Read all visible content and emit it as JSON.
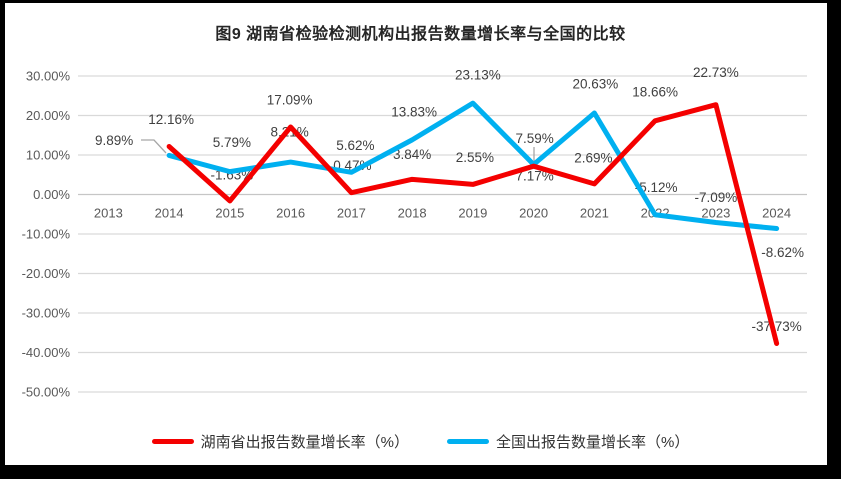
{
  "title": "图9 湖南省检验检测机构出报告数量增长率与全国的比较",
  "chart_data": {
    "type": "line",
    "categories": [
      "2013",
      "2014",
      "2015",
      "2016",
      "2017",
      "2018",
      "2019",
      "2020",
      "2021",
      "2022",
      "2023",
      "2024"
    ],
    "series": [
      {
        "name": "湖南省出报告数量增长率（%）",
        "color": "#f40000",
        "values": [
          null,
          12.16,
          -1.63,
          17.09,
          0.47,
          3.84,
          2.55,
          7.17,
          2.69,
          18.66,
          22.73,
          -37.73
        ],
        "labels": [
          "",
          "12.16%",
          "-1.63%",
          "17.09%",
          "0.47%",
          "3.84%",
          "2.55%",
          "7.17%",
          "2.69%",
          "18.66%",
          "22.73%",
          "-37.73%"
        ],
        "label_offsets": [
          null,
          [
            2,
            -27
          ],
          [
            2,
            -26
          ],
          [
            -1,
            -27
          ],
          [
            1,
            -27
          ],
          [
            0,
            -25
          ],
          [
            2,
            -27
          ],
          [
            1,
            10
          ],
          [
            -1,
            -26
          ],
          [
            0,
            -29
          ],
          [
            0,
            -32
          ],
          [
            0,
            -17
          ]
        ]
      },
      {
        "name": "全国出报告数量增长率（%）",
        "color": "#00b0f0",
        "values": [
          null,
          9.89,
          5.79,
          8.21,
          5.62,
          13.83,
          23.13,
          7.59,
          20.63,
          -5.12,
          -7.09,
          -8.62
        ],
        "labels": [
          "",
          "9.89%",
          "5.79%",
          "8.21%",
          "5.62%",
          "13.83%",
          "23.13%",
          "7.59%",
          "20.63%",
          "-5.12%",
          "-7.09%",
          "-8.62%"
        ],
        "label_offsets": [
          null,
          [
            -55,
            -15
          ],
          [
            2,
            -29
          ],
          [
            -1,
            -30
          ],
          [
            4,
            -27
          ],
          [
            2,
            -28
          ],
          [
            5,
            -28
          ],
          [
            1,
            -26
          ],
          [
            1,
            -29
          ],
          [
            1,
            -27
          ],
          [
            0,
            -25
          ],
          [
            6,
            24
          ]
        ]
      }
    ],
    "y_ticks": [
      {
        "value": 30,
        "label": "30.00%"
      },
      {
        "value": 20,
        "label": "20.00%"
      },
      {
        "value": 10,
        "label": "10.00%"
      },
      {
        "value": 0,
        "label": "0.00%"
      },
      {
        "value": -10,
        "label": "-10.00%"
      },
      {
        "value": -20,
        "label": "-20.00%"
      },
      {
        "value": -30,
        "label": "-30.00%"
      },
      {
        "value": -40,
        "label": "-40.00%"
      },
      {
        "value": -50,
        "label": "-50.00%"
      }
    ],
    "ylim": [
      -50,
      30
    ],
    "grid": true,
    "legend_position": "bottom",
    "leader_lines": [
      {
        "points": [
          [
            141,
            140
          ],
          [
            154,
            140
          ],
          [
            166,
            153
          ]
        ]
      },
      {
        "points": [
          [
            534,
            147
          ],
          [
            534,
            161
          ]
        ]
      }
    ],
    "colors": {
      "gridline": "#d9d9d9",
      "zero_line": "#c6c6c6",
      "tick_text": "#595959",
      "label_text": "#404040",
      "leader": "#a6a6a6"
    }
  }
}
